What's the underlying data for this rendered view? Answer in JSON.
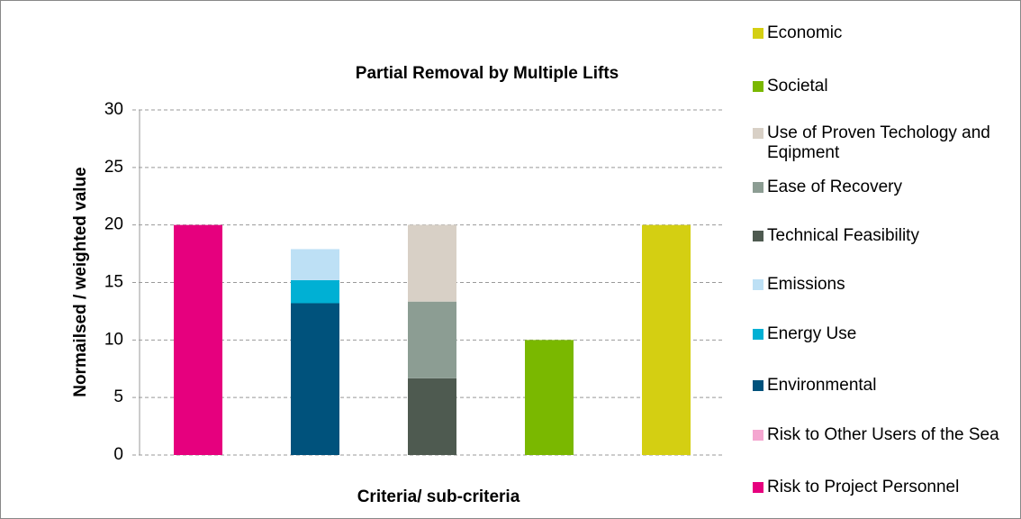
{
  "chart_data": {
    "type": "stacked_bar",
    "title": "Partial Removal by Multiple Lifts",
    "x_label": "Criteria/ sub-criteria",
    "y_label": "Normailsed / weighted value",
    "categories": [
      null,
      null,
      null,
      null,
      null
    ],
    "ylim": [
      0,
      30
    ],
    "yticks": [
      0,
      5,
      10,
      15,
      20,
      25,
      30
    ],
    "grid": true,
    "series": [
      {
        "name": "Risk to Project Personnel",
        "color": "#e6007e",
        "values": [
          20,
          null,
          null,
          null,
          null
        ]
      },
      {
        "name": "Risk to Other Users of the Sea",
        "color": "#f4a6d0",
        "values": [
          0,
          null,
          null,
          null,
          null
        ]
      },
      {
        "name": "Environmental",
        "color": "#00527c",
        "values": [
          null,
          13.2,
          null,
          null,
          null
        ]
      },
      {
        "name": "Energy Use",
        "color": "#00b0d4",
        "values": [
          null,
          2.0,
          null,
          null,
          null
        ]
      },
      {
        "name": "Emissions",
        "color": "#bde0f5",
        "values": [
          null,
          2.7,
          null,
          null,
          null
        ]
      },
      {
        "name": "Technical Feasibility",
        "color": "#4e5a50",
        "values": [
          null,
          null,
          6.67,
          null,
          null
        ]
      },
      {
        "name": "Ease of Recovery",
        "color": "#8c9d93",
        "values": [
          null,
          null,
          6.67,
          null,
          null
        ]
      },
      {
        "name": "Use of Proven Techology and Eqipment",
        "color": "#d8d0c6",
        "values": [
          null,
          null,
          6.67,
          null,
          null
        ]
      },
      {
        "name": "Societal",
        "color": "#7ab800",
        "values": [
          null,
          null,
          null,
          10,
          null
        ]
      },
      {
        "name": "Economic",
        "color": "#d4cf12",
        "values": [
          null,
          null,
          null,
          null,
          20
        ]
      }
    ]
  }
}
